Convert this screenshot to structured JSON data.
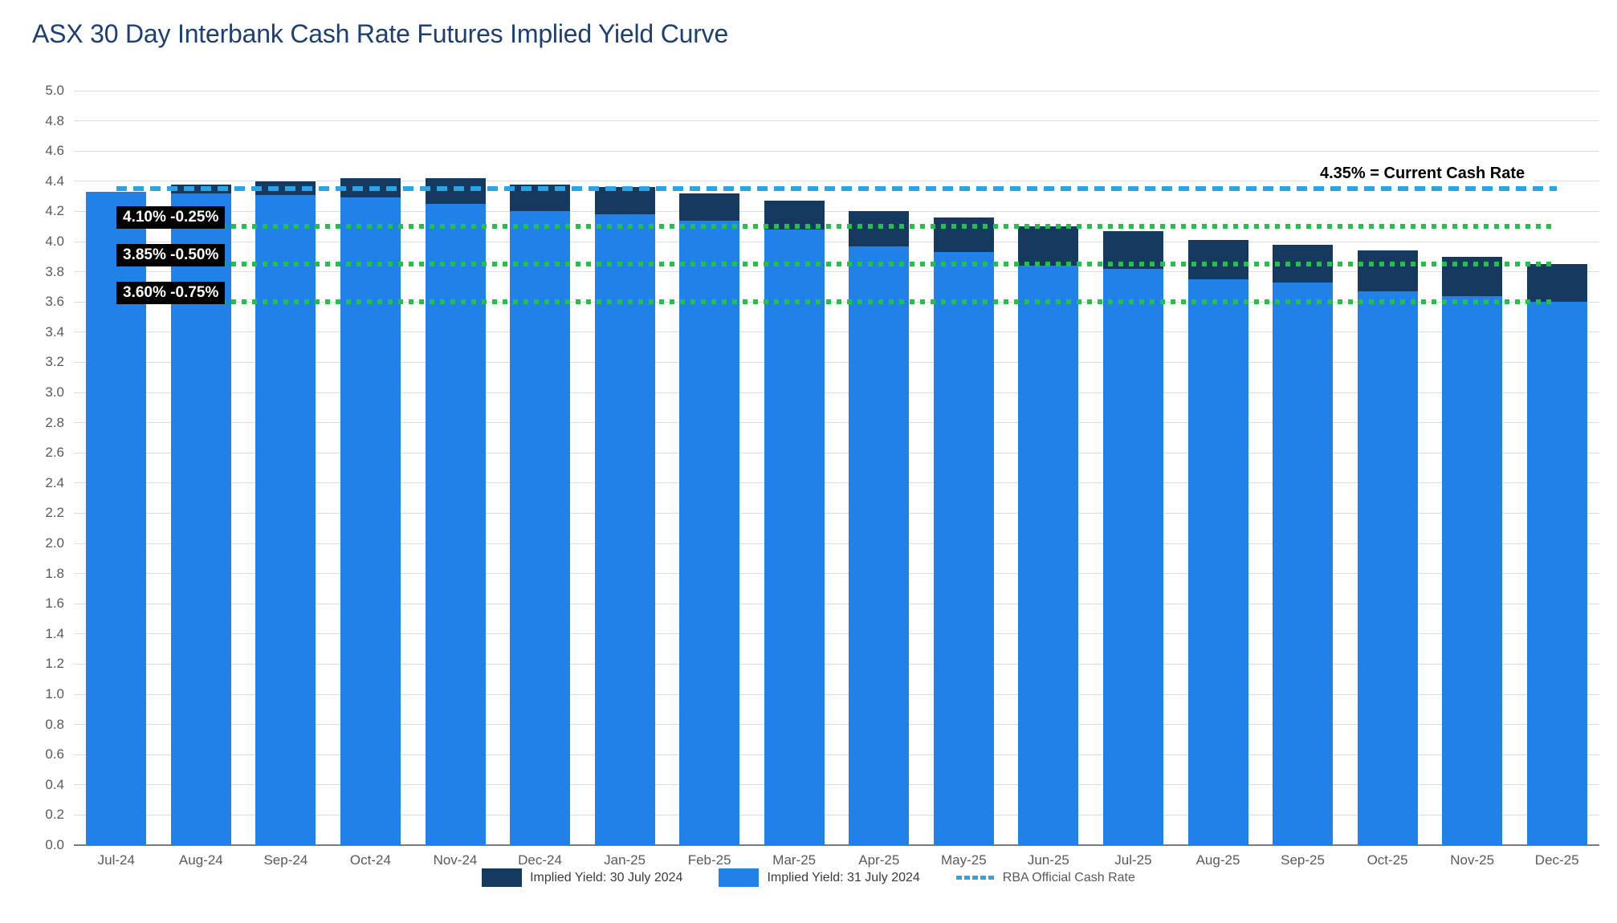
{
  "title": "ASX 30 Day Interbank Cash Rate Futures Implied Yield Curve",
  "chart_data": {
    "type": "bar",
    "title": "ASX 30 Day Interbank Cash Rate Futures Implied Yield Curve",
    "categories": [
      "Jul-24",
      "Aug-24",
      "Sep-24",
      "Oct-24",
      "Nov-24",
      "Dec-24",
      "Jan-25",
      "Feb-25",
      "Mar-25",
      "Apr-25",
      "May-25",
      "Jun-25",
      "Jul-25",
      "Aug-25",
      "Sep-25",
      "Oct-25",
      "Nov-25",
      "Dec-25"
    ],
    "series": [
      {
        "name": "Implied Yield: 30 July 2024",
        "color": "#163a5f",
        "values": [
          4.33,
          4.38,
          4.4,
          4.42,
          4.42,
          4.38,
          4.36,
          4.32,
          4.27,
          4.2,
          4.16,
          4.1,
          4.07,
          4.01,
          3.98,
          3.94,
          3.9,
          3.85
        ]
      },
      {
        "name": "Implied Yield: 31 July 2024",
        "color": "#2082e8",
        "values": [
          4.33,
          4.32,
          4.31,
          4.29,
          4.25,
          4.2,
          4.18,
          4.14,
          4.08,
          3.97,
          3.93,
          3.84,
          3.82,
          3.75,
          3.73,
          3.67,
          3.64,
          3.6
        ]
      }
    ],
    "reference_lines": [
      {
        "value": 4.35,
        "style": "dashed",
        "color": "#2ba3e6",
        "name": "RBA Official Cash Rate",
        "label": "4.35% = Current Cash Rate"
      },
      {
        "value": 4.1,
        "style": "dotted",
        "color": "#21c24a",
        "label": "4.10% -0.25%"
      },
      {
        "value": 3.85,
        "style": "dotted",
        "color": "#21c24a",
        "label": "3.85% -0.50%"
      },
      {
        "value": 3.6,
        "style": "dotted",
        "color": "#21c24a",
        "label": "3.60% -0.75%"
      }
    ],
    "ylim": [
      0.0,
      5.0
    ],
    "ytick_step": 0.2,
    "ytick_decimals": 1,
    "grid": true,
    "legend_position": "bottom"
  },
  "legend": {
    "items": [
      {
        "label": "Implied Yield: 30 July 2024",
        "swatch": "dark-navy-square"
      },
      {
        "label": "Implied Yield: 31 July 2024",
        "swatch": "light-blue-square"
      },
      {
        "label": "RBA Official Cash Rate",
        "swatch": "dashed-line"
      }
    ]
  },
  "colors": {
    "title_text": "#1e3f74",
    "grid": "#dcdcdc",
    "axis": "#7a7a7a",
    "tick_text": "#595959",
    "label_box_bg": "#000000",
    "label_box_text": "#ffffff",
    "series_dark": "#163a5f",
    "series_light": "#2082e8",
    "cash_rate_line": "#2ba3e6",
    "cut_lines": "#21c24a"
  }
}
